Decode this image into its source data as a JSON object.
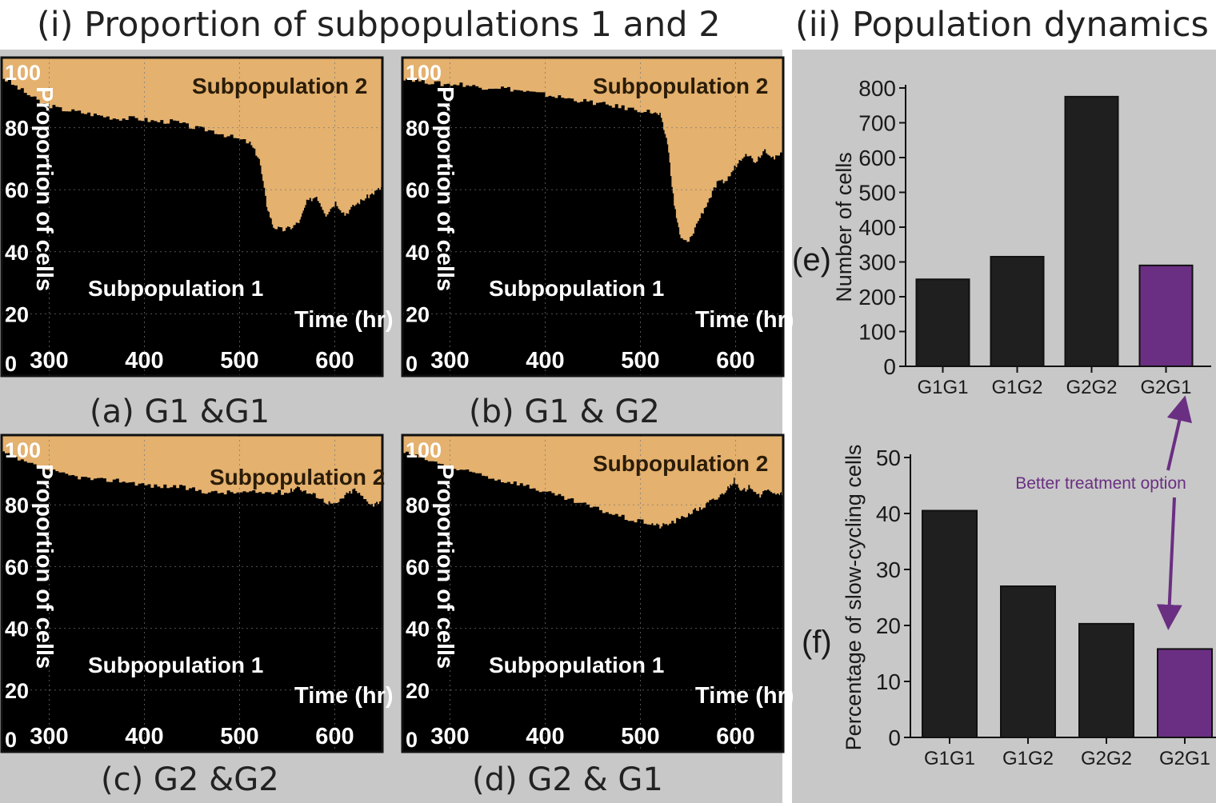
{
  "headings": {
    "left": "(i) Proportion of subpopulations 1 and 2",
    "right": "(ii) Population dynamics"
  },
  "colors": {
    "subpop1": "#000000",
    "subpop2": "#e4b16e",
    "bar_default": "#1f1f1f",
    "bar_highlight": "#6a2f82",
    "annotation": "#6a2f82",
    "panel_bg": "#c8c8c8"
  },
  "panels": [
    {
      "caption": "(a) G1 &G1",
      "sub2_label": "Subpopulation 2",
      "sub1_label": "Subpopulation 1",
      "xlabel": "Time (hr)",
      "ylabel": "Proportion of cells",
      "yticks": [
        "100",
        "80",
        "60",
        "40",
        "20",
        "0"
      ],
      "xticks": [
        "300",
        "400",
        "500",
        "600"
      ]
    },
    {
      "caption": "(b) G1 & G2",
      "sub2_label": "Subpopulation 2",
      "sub1_label": "Subpopulation 1",
      "xlabel": "Time (hr)",
      "ylabel": "Proportion of cells",
      "yticks": [
        "100",
        "80",
        "60",
        "40",
        "20",
        "0"
      ],
      "xticks": [
        "300",
        "400",
        "500",
        "600"
      ]
    },
    {
      "caption": "(c) G2 &G2",
      "sub2_label": "Subpopulation 2",
      "sub1_label": "Subpopulation 1",
      "xlabel": "Time (hr)",
      "ylabel": "Proportion of cells",
      "yticks": [
        "100",
        "80",
        "60",
        "40",
        "20",
        "0"
      ],
      "xticks": [
        "300",
        "400",
        "500",
        "600"
      ]
    },
    {
      "caption": "(d) G2 & G1",
      "sub2_label": "Subpopulation 2",
      "sub1_label": "Subpopulation 1",
      "xlabel": "Time (hr)",
      "ylabel": "Proportion of cells",
      "yticks": [
        "100",
        "80",
        "60",
        "40",
        "20",
        "0"
      ],
      "xticks": [
        "300",
        "400",
        "500",
        "600"
      ]
    }
  ],
  "bar_e": {
    "panel_label": "(e)",
    "ylabel": "Number of cells",
    "yticks": [
      "0",
      "100",
      "200",
      "300",
      "400",
      "500",
      "600",
      "700",
      "800"
    ]
  },
  "bar_f": {
    "panel_label": "(f)",
    "ylabel": "Percentage of slow-cycling cells",
    "yticks": [
      "0",
      "10",
      "20",
      "30",
      "40",
      "50"
    ]
  },
  "annotation": "Better treatment option",
  "chart_data": [
    {
      "type": "area",
      "title": "(a) G1 &G1",
      "xlabel": "Time (hr)",
      "ylabel": "Proportion of cells",
      "xlim": [
        250,
        650
      ],
      "ylim": [
        0,
        100
      ],
      "series": [
        {
          "name": "Subpopulation 1",
          "x": [
            250,
            270,
            290,
            310,
            330,
            350,
            370,
            390,
            410,
            430,
            450,
            470,
            490,
            510,
            520,
            528,
            535,
            545,
            555,
            563,
            570,
            580,
            590,
            600,
            610,
            620,
            630,
            640,
            650
          ],
          "values": [
            96,
            92,
            88,
            86,
            85,
            84,
            83,
            83,
            82,
            82,
            80,
            79,
            77,
            75,
            70,
            55,
            48,
            47,
            48,
            50,
            56,
            58,
            52,
            56,
            52,
            55,
            57,
            59,
            61
          ]
        },
        {
          "name": "Subpopulation 2",
          "values": "complement to 100"
        }
      ]
    },
    {
      "type": "area",
      "title": "(b) G1 & G2",
      "xlabel": "Time (hr)",
      "ylabel": "Proportion of cells",
      "xlim": [
        250,
        650
      ],
      "ylim": [
        0,
        100
      ],
      "series": [
        {
          "name": "Subpopulation 1",
          "x": [
            250,
            270,
            290,
            310,
            330,
            350,
            370,
            390,
            410,
            430,
            450,
            470,
            490,
            510,
            520,
            528,
            535,
            542,
            550,
            560,
            570,
            580,
            590,
            600,
            610,
            620,
            630,
            640,
            650
          ],
          "values": [
            96,
            95,
            94,
            94,
            93,
            93,
            92,
            91,
            90,
            89,
            88,
            87,
            86,
            85,
            84,
            75,
            55,
            44,
            43,
            50,
            56,
            62,
            63,
            68,
            72,
            69,
            73,
            70,
            72
          ]
        },
        {
          "name": "Subpopulation 2",
          "values": "complement to 100"
        }
      ]
    },
    {
      "type": "area",
      "title": "(c) G2 &G2",
      "xlabel": "Time (hr)",
      "ylabel": "Proportion of cells",
      "xlim": [
        250,
        650
      ],
      "ylim": [
        0,
        100
      ],
      "series": [
        {
          "name": "Subpopulation 1",
          "x": [
            250,
            270,
            290,
            310,
            330,
            350,
            370,
            390,
            410,
            430,
            450,
            470,
            490,
            510,
            530,
            550,
            560,
            570,
            580,
            590,
            600,
            610,
            620,
            630,
            640,
            650
          ],
          "values": [
            97,
            94,
            92,
            90,
            89,
            88,
            88,
            87,
            86,
            86,
            85,
            84,
            84,
            84,
            84,
            84,
            86,
            84,
            83,
            81,
            80,
            83,
            85,
            82,
            80,
            82
          ]
        },
        {
          "name": "Subpopulation 2",
          "values": "complement to 100"
        }
      ]
    },
    {
      "type": "area",
      "title": "(d) G2 & G1",
      "xlabel": "Time (hr)",
      "ylabel": "Proportion of cells",
      "xlim": [
        250,
        650
      ],
      "ylim": [
        0,
        100
      ],
      "series": [
        {
          "name": "Subpopulation 1",
          "x": [
            250,
            270,
            290,
            310,
            330,
            350,
            370,
            390,
            410,
            430,
            450,
            470,
            490,
            510,
            520,
            530,
            545,
            555,
            565,
            572,
            580,
            590,
            598,
            605,
            615,
            625,
            635,
            645,
            650
          ],
          "values": [
            97,
            95,
            93,
            91,
            90,
            88,
            87,
            85,
            83,
            81,
            79,
            77,
            75,
            74,
            73,
            74,
            76,
            78,
            79,
            81,
            82,
            85,
            88,
            84,
            86,
            83,
            85,
            83,
            84
          ]
        },
        {
          "name": "Subpopulation 2",
          "values": "complement to 100"
        }
      ]
    },
    {
      "type": "bar",
      "title": "(e)",
      "ylabel": "Number of cells",
      "categories": [
        "G1G1",
        "G1G2",
        "G2G2",
        "G2G1"
      ],
      "values": [
        250,
        315,
        775,
        290
      ],
      "ylim": [
        0,
        800
      ],
      "highlight": "G2G1"
    },
    {
      "type": "bar",
      "title": "(f)",
      "ylabel": "Percentage of slow-cycling cells",
      "categories": [
        "G1G1",
        "G1G2",
        "G2G2",
        "G2G1"
      ],
      "values": [
        40.5,
        27,
        20.3,
        15.8
      ],
      "ylim": [
        0,
        50
      ],
      "highlight": "G2G1"
    }
  ]
}
